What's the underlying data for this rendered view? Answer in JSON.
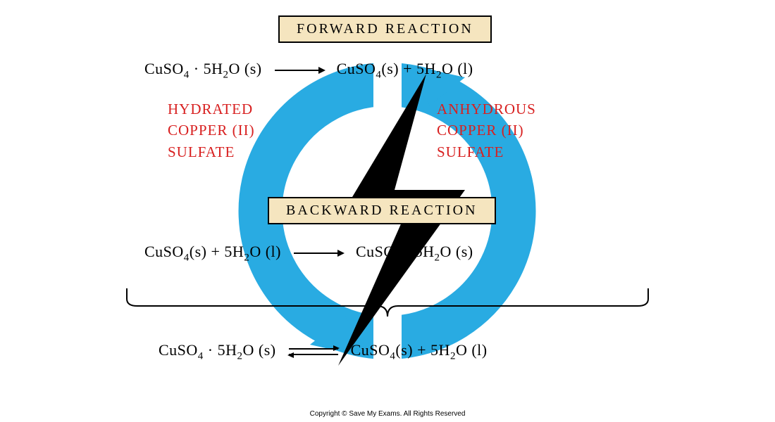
{
  "background": {
    "logo_ring_color": "#29abe2",
    "logo_bolt_color": "#000000",
    "logo_size": 440
  },
  "forward": {
    "label": "FORWARD   REACTION",
    "label_bg": "#f5e5bf",
    "label_border": "#000000",
    "lhs_html": "CuSO<span class='sub'>4</span> · 5H<span class='sub'>2</span>O (s)",
    "rhs_html": "CuSO<span class='sub'>4</span>(s) + 5H<span class='sub'>2</span>O (l)"
  },
  "annot_left": {
    "line1": "HYDRATED",
    "line2": "COPPER (II)",
    "line3": "SULFATE",
    "color": "#d82020"
  },
  "annot_right": {
    "line1": "ANHYDROUS",
    "line2": "COPPER (II)",
    "line3": "SULFATE",
    "color": "#d82020"
  },
  "backward": {
    "label": "BACKWARD   REACTION",
    "label_bg": "#f5e5bf",
    "lhs_html": "CuSO<span class='sub'>4</span>(s) + 5H<span class='sub'>2</span>O (l)",
    "rhs_html": "CuSO<span class='sub'>4</span> · 5H<span class='sub'>2</span>O (s)"
  },
  "combined": {
    "lhs_html": "CuSO<span class='sub'>4</span> · 5H<span class='sub'>2</span>O (s)",
    "rhs_html": "CuSO<span class='sub'>4</span>(s) + 5H<span class='sub'>2</span>O (l)"
  },
  "brace": {
    "color": "#000000",
    "stroke_width": 2
  },
  "copyright": "Copyright © Save My Exams. All Rights Reserved",
  "fonts": {
    "label_size": 20,
    "equation_size": 22,
    "annot_size": 21,
    "copyright_size": 10
  }
}
